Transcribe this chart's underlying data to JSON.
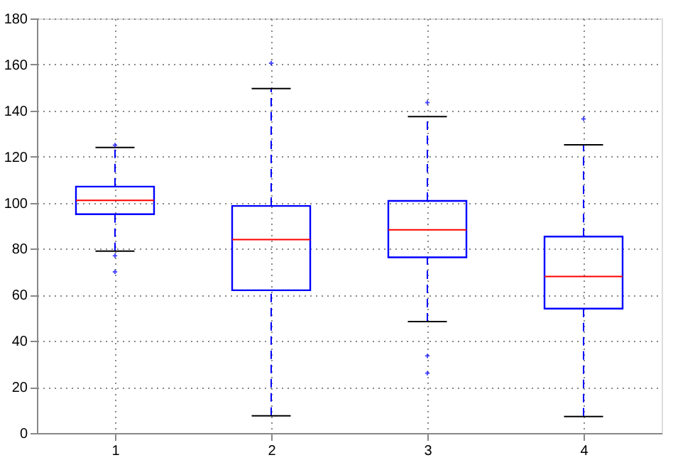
{
  "chart_data": {
    "type": "box",
    "categories": [
      "1",
      "2",
      "3",
      "4"
    ],
    "boxes": [
      {
        "low": 79,
        "q1": 95,
        "median": 101,
        "q3": 107,
        "high": 124,
        "outliers": [
          125,
          77,
          70
        ]
      },
      {
        "low": 7.5,
        "q1": 62,
        "median": 84,
        "q3": 98.6,
        "high": 149.6,
        "outliers": [
          160.6
        ]
      },
      {
        "low": 48.4,
        "q1": 76.3,
        "median": 88.2,
        "q3": 100.8,
        "high": 137.4,
        "outliers": [
          143.5,
          33.5,
          26
        ]
      },
      {
        "low": 7.2,
        "q1": 54,
        "median": 68,
        "q3": 85.3,
        "high": 125.1,
        "outliers": [
          136.4
        ]
      }
    ],
    "color": "#0000ff",
    "ylim": [
      0,
      180
    ],
    "yticks": [
      0,
      20,
      40,
      60,
      80,
      100,
      120,
      140,
      160,
      180
    ],
    "grid": true,
    "marker": "cross",
    "line_style": "dashed"
  }
}
